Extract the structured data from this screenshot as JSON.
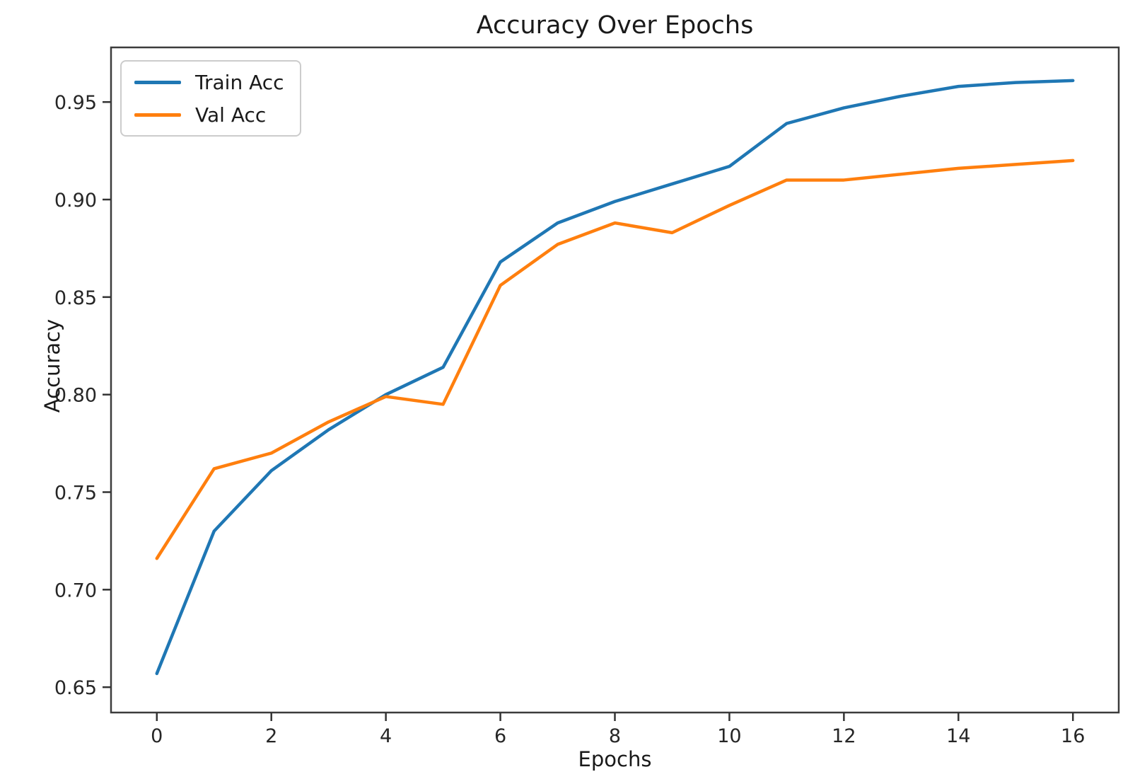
{
  "chart_data": {
    "type": "line",
    "title": "Accuracy Over Epochs",
    "xlabel": "Epochs",
    "ylabel": "Accuracy",
    "x": [
      0,
      1,
      2,
      3,
      4,
      5,
      6,
      7,
      8,
      9,
      10,
      11,
      12,
      13,
      14,
      15,
      16
    ],
    "series": [
      {
        "name": "Train Acc",
        "color": "#1f77b4",
        "values": [
          0.657,
          0.73,
          0.761,
          0.782,
          0.8,
          0.814,
          0.868,
          0.888,
          0.899,
          0.908,
          0.917,
          0.939,
          0.947,
          0.953,
          0.958,
          0.96,
          0.961
        ]
      },
      {
        "name": "Val Acc",
        "color": "#ff7f0e",
        "values": [
          0.716,
          0.762,
          0.77,
          0.786,
          0.799,
          0.795,
          0.856,
          0.877,
          0.888,
          0.883,
          0.897,
          0.91,
          0.91,
          0.913,
          0.916,
          0.918,
          0.92
        ]
      }
    ],
    "xlim": [
      -0.8,
      16.8
    ],
    "ylim": [
      0.637,
      0.978
    ],
    "x_ticks": [
      0,
      2,
      4,
      6,
      8,
      10,
      12,
      14,
      16
    ],
    "y_ticks": [
      0.65,
      0.7,
      0.75,
      0.8,
      0.85,
      0.9,
      0.95
    ],
    "legend_position": "upper left",
    "grid": false
  }
}
